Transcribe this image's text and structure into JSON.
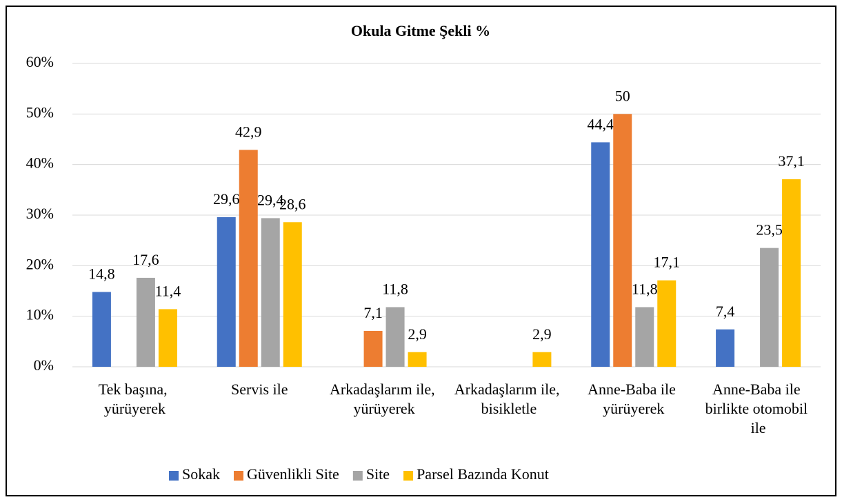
{
  "chart_data": {
    "type": "bar",
    "title": "Okula Gitme Şekli %",
    "categories": [
      "Tek başına, yürüyerek",
      "Servis ile",
      "Arkadaşlarım ile, yürüyerek",
      "Arkadaşlarım ile, bisikletle",
      "Anne-Baba ile yürüyerek",
      "Anne-Baba ile birlikte otomobil ile"
    ],
    "series": [
      {
        "name": "Sokak",
        "color": "#4472c4",
        "values": [
          14.8,
          29.6,
          null,
          null,
          44.4,
          7.4
        ],
        "value_labels": [
          "14,8",
          "29,6",
          null,
          null,
          "44,4",
          "7,4"
        ]
      },
      {
        "name": "Güvenlikli Site",
        "color": "#ed7d31",
        "values": [
          null,
          42.9,
          7.1,
          null,
          50,
          null
        ],
        "value_labels": [
          null,
          "42,9",
          "7,1",
          null,
          "50",
          null
        ]
      },
      {
        "name": "Site",
        "color": "#a5a5a5",
        "values": [
          17.6,
          29.4,
          11.8,
          null,
          11.8,
          23.5
        ],
        "value_labels": [
          "17,6",
          "29,4",
          "11,8",
          null,
          "11,8",
          "23,5"
        ]
      },
      {
        "name": "Parsel Bazında Konut",
        "color": "#ffc000",
        "values": [
          11.4,
          28.6,
          2.9,
          2.9,
          17.1,
          37.1
        ],
        "value_labels": [
          "11,4",
          "28,6",
          "2,9",
          "2,9",
          "17,1",
          "37,1"
        ]
      }
    ],
    "ylim": [
      0,
      60
    ],
    "yticks": [
      {
        "value": 0,
        "label": "0%"
      },
      {
        "value": 10,
        "label": "10%"
      },
      {
        "value": 20,
        "label": "20%"
      },
      {
        "value": 30,
        "label": "30%"
      },
      {
        "value": 40,
        "label": "40%"
      },
      {
        "value": 50,
        "label": "50%"
      },
      {
        "value": 60,
        "label": "60%"
      }
    ],
    "grid": true,
    "legend": "bottom"
  }
}
